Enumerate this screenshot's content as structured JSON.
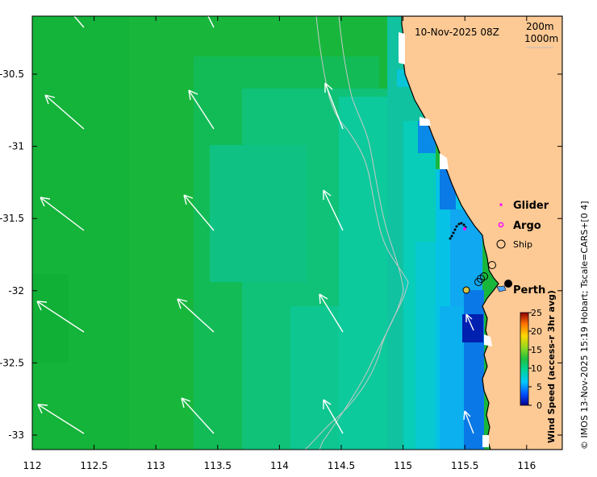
{
  "map": {
    "timestamp": "10-Nov-2025 08Z",
    "depth_contours": [
      "200m",
      "1000m"
    ],
    "credit": "© IMOS 13-Nov-2025 15:19 Hobart; Tscale=CARS+[0 4]",
    "colorbar_title": "Wind Speed (access-r 3hr avg)",
    "colorbar_ticks": [
      "0",
      "5",
      "10",
      "15",
      "20",
      "25"
    ],
    "colorbar_range": [
      0,
      25
    ],
    "x_ticks": [
      "112",
      "112.5",
      "113",
      "113.5",
      "114",
      "114.5",
      "115",
      "115.5",
      "116"
    ],
    "y_ticks": [
      "-30.5",
      "-31",
      "-31.5",
      "-32",
      "-32.5",
      "-33"
    ],
    "legend": {
      "glider": "Glider",
      "argo": "Argo",
      "ship": "Ship"
    },
    "city": "Perth",
    "colors": {
      "land": "#fdc994",
      "wind_green": "#18bb3a",
      "wind_teal": "#0fc69b",
      "wind_blue": "#0a6fe0",
      "glider": "#ff00ff",
      "argo": "#ff00ff"
    }
  }
}
